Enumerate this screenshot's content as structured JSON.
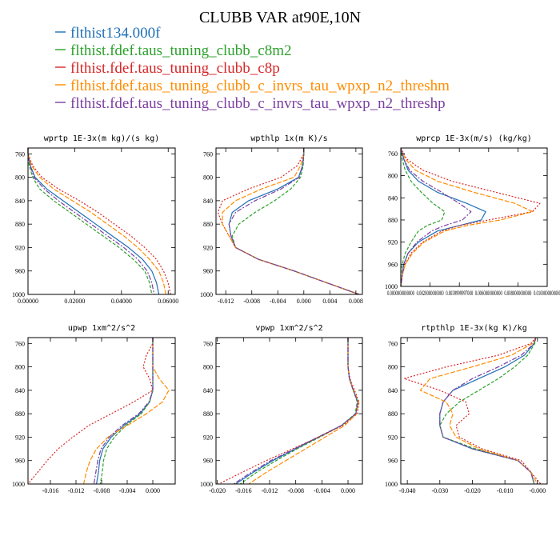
{
  "title": "CLUBB VAR at90E,10N",
  "legend": [
    {
      "label": "flthist134.000f",
      "color": "#1f6fb5"
    },
    {
      "label": "flthist.fdef.taus_tuning_clubb_c8m2",
      "color": "#2ca02c"
    },
    {
      "label": "flthist.fdef.taus_tuning_clubb_c8p",
      "color": "#d62728"
    },
    {
      "label": "flthist.fdef.taus_tuning_clubb_c_invrs_tau_wpxp_n2_threshm",
      "color": "#ff8c00"
    },
    {
      "label": "flthist.fdef.taus_tuning_clubb_c_invrs_tau_wpxp_n2_threshp",
      "color": "#7b3fa0"
    }
  ],
  "chart_data": [
    {
      "type": "line",
      "title": "wprtp  1E-3x(m kg)/(s kg)",
      "xlim": [
        0,
        0.063
      ],
      "ylim": [
        1000,
        750
      ],
      "xticks": [
        "0.00000",
        "0.02000",
        "0.04000",
        "0.06000"
      ],
      "xtick_values": [
        0,
        0.02,
        0.04,
        0.06
      ],
      "yticks": [
        "760",
        "800",
        "840",
        "880",
        "920",
        "960",
        "1000"
      ],
      "ytick_values": [
        760,
        800,
        840,
        880,
        920,
        960,
        1000
      ],
      "y": [
        750,
        760,
        780,
        800,
        820,
        840,
        860,
        880,
        900,
        920,
        940,
        960,
        980,
        1000
      ],
      "series": [
        {
          "x": [
            0.0,
            0.0,
            0.001,
            0.003,
            0.008,
            0.015,
            0.022,
            0.029,
            0.036,
            0.043,
            0.049,
            0.053,
            0.055,
            0.056
          ]
        },
        {
          "x": [
            0.0,
            0.0,
            0.0005,
            0.002,
            0.005,
            0.011,
            0.018,
            0.025,
            0.032,
            0.039,
            0.045,
            0.05,
            0.052,
            0.053
          ]
        },
        {
          "x": [
            0.0,
            0.0,
            0.002,
            0.006,
            0.013,
            0.022,
            0.03,
            0.037,
            0.044,
            0.05,
            0.055,
            0.058,
            0.06,
            0.061
          ]
        },
        {
          "x": [
            0.0,
            0.0,
            0.0015,
            0.005,
            0.011,
            0.019,
            0.027,
            0.034,
            0.041,
            0.047,
            0.052,
            0.056,
            0.058,
            0.059
          ]
        },
        {
          "x": [
            0.0,
            0.0,
            0.001,
            0.0025,
            0.007,
            0.013,
            0.02,
            0.027,
            0.034,
            0.041,
            0.047,
            0.051,
            0.053,
            0.054
          ]
        }
      ]
    },
    {
      "type": "line",
      "title": "wpthlp  1x(m K)/s",
      "xlim": [
        -0.0135,
        0.009
      ],
      "ylim": [
        1000,
        750
      ],
      "xticks": [
        "-0.012",
        "-0.008",
        "-0.004",
        "0.000",
        "0.004",
        "0.008"
      ],
      "xtick_values": [
        -0.012,
        -0.008,
        -0.004,
        0.0,
        0.004,
        0.008
      ],
      "yticks": [
        "760",
        "800",
        "840",
        "880",
        "920",
        "960",
        "1000"
      ],
      "ytick_values": [
        760,
        800,
        840,
        880,
        920,
        960,
        1000
      ],
      "y": [
        750,
        760,
        780,
        800,
        820,
        840,
        860,
        880,
        900,
        920,
        940,
        960,
        980,
        1000
      ],
      "series": [
        {
          "x": [
            0.0,
            0.0,
            -0.0002,
            -0.0008,
            -0.004,
            -0.0085,
            -0.011,
            -0.0115,
            -0.0112,
            -0.0105,
            -0.007,
            -0.0015,
            0.0035,
            0.0085
          ]
        },
        {
          "x": [
            0.0,
            0.0,
            -0.0001,
            -0.0005,
            -0.002,
            -0.0045,
            -0.0075,
            -0.01,
            -0.011,
            -0.0105,
            -0.007,
            -0.0015,
            0.0035,
            0.0085
          ]
        },
        {
          "x": [
            0.0,
            0.0,
            -0.001,
            -0.0035,
            -0.0085,
            -0.0125,
            -0.0132,
            -0.0125,
            -0.0115,
            -0.0105,
            -0.007,
            -0.0015,
            0.0035,
            0.0085
          ]
        },
        {
          "x": [
            0.0,
            0.0,
            -0.0005,
            -0.0015,
            -0.0065,
            -0.0105,
            -0.0125,
            -0.0125,
            -0.0115,
            -0.0105,
            -0.007,
            -0.0015,
            0.0035,
            0.0085
          ]
        },
        {
          "x": [
            0.0,
            0.0,
            -0.0002,
            -0.0007,
            -0.0035,
            -0.0075,
            -0.0105,
            -0.0115,
            -0.0112,
            -0.0105,
            -0.007,
            -0.0015,
            0.0035,
            0.0085
          ]
        }
      ]
    },
    {
      "type": "line",
      "title": "wprcp  1E-3x(m/s) (kg/kg)",
      "xlim": [
        0,
        0.01
      ],
      "ylim": [
        1000,
        750
      ],
      "xticks": [
        "0.0000000000000",
        "0.0020000000000",
        "0.0039999997000",
        "0.0060000000000",
        "0.0080000000000",
        "0.0100000000000"
      ],
      "xtick_values": [
        0.0,
        0.002,
        0.004,
        0.006,
        0.008,
        0.01
      ],
      "yticks": [
        "760",
        "800",
        "840",
        "880",
        "920",
        "960",
        "1000"
      ],
      "ytick_values": [
        760,
        800,
        840,
        880,
        920,
        960,
        1000
      ],
      "y": [
        750,
        770,
        790,
        810,
        830,
        850,
        865,
        880,
        890,
        900,
        920,
        940,
        960,
        980,
        1000
      ],
      "series": [
        {
          "x": [
            0.0,
            0.0002,
            0.0005,
            0.0012,
            0.0025,
            0.0045,
            0.0058,
            0.0055,
            0.004,
            0.0025,
            0.0012,
            0.0005,
            0.0002,
            0.0001,
            0.0
          ]
        },
        {
          "x": [
            0.0,
            0.0001,
            0.0003,
            0.0007,
            0.0014,
            0.0022,
            0.003,
            0.0028,
            0.0018,
            0.0012,
            0.0007,
            0.0003,
            0.0001,
            0.0,
            0.0
          ]
        },
        {
          "x": [
            0.0,
            0.0004,
            0.0015,
            0.0035,
            0.0065,
            0.0095,
            0.009,
            0.006,
            0.004,
            0.0028,
            0.0015,
            0.0007,
            0.0003,
            0.0001,
            0.0
          ]
        },
        {
          "x": [
            0.0,
            0.0003,
            0.001,
            0.0025,
            0.005,
            0.0078,
            0.009,
            0.0068,
            0.0045,
            0.003,
            0.0016,
            0.0008,
            0.0003,
            0.0001,
            0.0
          ]
        },
        {
          "x": [
            0.0,
            0.0002,
            0.0006,
            0.0015,
            0.0028,
            0.004,
            0.0048,
            0.0042,
            0.003,
            0.0021,
            0.0011,
            0.0005,
            0.0002,
            0.0001,
            0.0
          ]
        }
      ]
    },
    {
      "type": "line",
      "title": "upwp  1xm^2/s^2",
      "xlim": [
        -0.0195,
        0.0035
      ],
      "ylim": [
        1000,
        750
      ],
      "xticks": [
        "-0.016",
        "-0.012",
        "-0.008",
        "-0.004",
        "0.000"
      ],
      "xtick_values": [
        -0.016,
        -0.012,
        -0.008,
        -0.004,
        0.0
      ],
      "yticks": [
        "760",
        "800",
        "840",
        "880",
        "920",
        "960",
        "1000"
      ],
      "ytick_values": [
        760,
        800,
        840,
        880,
        920,
        960,
        1000
      ],
      "y": [
        750,
        760,
        780,
        800,
        820,
        840,
        860,
        880,
        900,
        920,
        940,
        960,
        980,
        1000
      ],
      "series": [
        {
          "x": [
            0.0,
            0.0,
            0.0,
            0.0,
            0.0,
            0.0,
            -0.0005,
            -0.002,
            -0.0045,
            -0.0065,
            -0.0078,
            -0.0083,
            -0.0085,
            -0.0088
          ]
        },
        {
          "x": [
            0.0,
            0.0,
            0.0,
            0.0,
            0.0,
            0.0,
            -0.0005,
            -0.0018,
            -0.0042,
            -0.006,
            -0.0072,
            -0.0077,
            -0.0079,
            -0.0082
          ]
        },
        {
          "x": [
            0.0,
            0.0,
            -0.001,
            -0.0015,
            -0.0005,
            0.0,
            -0.003,
            -0.0065,
            -0.01,
            -0.0125,
            -0.0148,
            -0.0165,
            -0.018,
            -0.0195
          ]
        },
        {
          "x": [
            0.0,
            0.0,
            0.0,
            0.0,
            0.001,
            0.0025,
            0.0015,
            -0.001,
            -0.004,
            -0.007,
            -0.0088,
            -0.0098,
            -0.0104,
            -0.0108
          ]
        },
        {
          "x": [
            0.0,
            0.0,
            0.0,
            0.0,
            0.0,
            0.0,
            -0.0006,
            -0.0022,
            -0.0048,
            -0.0068,
            -0.0081,
            -0.0086,
            -0.0089,
            -0.0092
          ]
        }
      ]
    },
    {
      "type": "line",
      "title": "vpwp  1xm^2/s^2",
      "xlim": [
        -0.0202,
        0.0022
      ],
      "ylim": [
        1000,
        750
      ],
      "xticks": [
        "-0.020",
        "-0.016",
        "-0.012",
        "-0.008",
        "-0.004",
        "0.000"
      ],
      "xtick_values": [
        -0.02,
        -0.016,
        -0.012,
        -0.008,
        -0.004,
        0.0
      ],
      "yticks": [
        "760",
        "800",
        "840",
        "880",
        "920",
        "960",
        "1000"
      ],
      "ytick_values": [
        760,
        800,
        840,
        880,
        920,
        960,
        1000
      ],
      "y": [
        750,
        760,
        780,
        800,
        820,
        840,
        860,
        880,
        900,
        920,
        940,
        960,
        980,
        1000
      ],
      "series": [
        {
          "x": [
            0.0,
            0.0,
            0.0,
            0.0,
            0.0002,
            0.0008,
            0.0015,
            0.0012,
            -0.001,
            -0.0045,
            -0.008,
            -0.0115,
            -0.0145,
            -0.0172
          ]
        },
        {
          "x": [
            0.0,
            0.0,
            0.0,
            0.0,
            0.0002,
            0.0008,
            0.0014,
            0.0011,
            -0.001,
            -0.0043,
            -0.0078,
            -0.011,
            -0.014,
            -0.0165
          ]
        },
        {
          "x": [
            0.0,
            0.0,
            0.0,
            0.0,
            0.0003,
            0.001,
            0.0017,
            0.0014,
            -0.0008,
            -0.0045,
            -0.0085,
            -0.0125,
            -0.0162,
            -0.0198
          ]
        },
        {
          "x": [
            0.0,
            0.0,
            0.0,
            0.0,
            0.0002,
            0.0009,
            0.0016,
            0.0013,
            -0.0005,
            -0.0035,
            -0.0065,
            -0.0095,
            -0.0125,
            -0.0152
          ]
        },
        {
          "x": [
            0.0,
            0.0,
            0.0,
            0.0,
            0.0002,
            0.0008,
            0.0015,
            0.0012,
            -0.001,
            -0.0046,
            -0.0082,
            -0.0118,
            -0.0148,
            -0.0175
          ]
        }
      ]
    },
    {
      "type": "line",
      "title": "rtpthlp  1E-3x(kg K)/kg",
      "xlim": [
        -0.042,
        0.003
      ],
      "ylim": [
        1000,
        750
      ],
      "xticks": [
        "-0.040",
        "-0.030",
        "-0.020",
        "-0.010",
        "-0.000"
      ],
      "xtick_values": [
        -0.04,
        -0.03,
        -0.02,
        -0.01,
        0.0
      ],
      "yticks": [
        "760",
        "800",
        "840",
        "880",
        "920",
        "960",
        "1000"
      ],
      "ytick_values": [
        760,
        800,
        840,
        880,
        920,
        960,
        1000
      ],
      "y": [
        750,
        760,
        780,
        800,
        820,
        840,
        860,
        880,
        900,
        920,
        940,
        960,
        980,
        1000
      ],
      "series": [
        {
          "x": [
            -0.0005,
            -0.001,
            -0.004,
            -0.01,
            -0.018,
            -0.026,
            -0.029,
            -0.03,
            -0.03,
            -0.029,
            -0.02,
            -0.006,
            -0.002,
            -0.001
          ]
        },
        {
          "x": [
            -0.0005,
            -0.0008,
            -0.003,
            -0.007,
            -0.012,
            -0.018,
            -0.024,
            -0.028,
            -0.03,
            -0.029,
            -0.019,
            -0.006,
            -0.002,
            -0.001
          ]
        },
        {
          "x": [
            -0.0005,
            -0.002,
            -0.012,
            -0.028,
            -0.041,
            -0.03,
            -0.022,
            -0.021,
            -0.025,
            -0.024,
            -0.017,
            -0.005,
            -0.002,
            0.001
          ]
        },
        {
          "x": [
            -0.0005,
            -0.0015,
            -0.008,
            -0.02,
            -0.033,
            -0.036,
            -0.028,
            -0.026,
            -0.027,
            -0.025,
            -0.018,
            -0.006,
            -0.002,
            0.0
          ]
        },
        {
          "x": [
            -0.0005,
            -0.001,
            -0.005,
            -0.012,
            -0.02,
            -0.026,
            -0.029,
            -0.03,
            -0.03,
            -0.029,
            -0.02,
            -0.006,
            -0.002,
            -0.001
          ]
        }
      ]
    }
  ]
}
